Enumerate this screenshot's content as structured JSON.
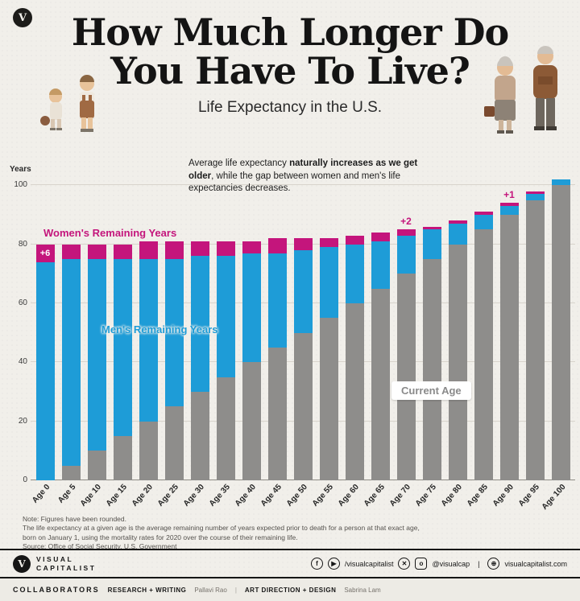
{
  "header": {
    "corner_mark": "V",
    "title_line1": "How Much Longer Do",
    "title_line2": "You Have To Live?",
    "subtitle": "Life Expectancy in the U.S."
  },
  "chart": {
    "axis_label": "Years",
    "annotation_pre": "Average life expectancy ",
    "annotation_bold": "naturally increases as we get older",
    "annotation_post": ", while the gap between women and men's life expectancies decreases."
  },
  "chart_data": {
    "type": "bar",
    "subtype": "stacked",
    "title": "How Much Longer Do You Have To Live? — Life Expectancy in the U.S.",
    "xlabel": "Current age",
    "ylabel": "Years",
    "ylim": [
      0,
      100
    ],
    "yticks": [
      0,
      20,
      40,
      60,
      80,
      100
    ],
    "grid": true,
    "categories": [
      "Age 0",
      "Age 5",
      "Age 10",
      "Age 15",
      "Age 20",
      "Age 25",
      "Age 30",
      "Age 35",
      "Age 40",
      "Age 45",
      "Age 50",
      "Age 55",
      "Age 60",
      "Age 65",
      "Age 70",
      "Age 75",
      "Age 80",
      "Age 85",
      "Age 90",
      "Age 95",
      "Age 100"
    ],
    "series": [
      {
        "name": "Current Age",
        "color": "#8e8d8b",
        "values": [
          0,
          5,
          10,
          15,
          20,
          25,
          30,
          35,
          40,
          45,
          50,
          55,
          60,
          65,
          70,
          75,
          80,
          85,
          90,
          95,
          100
        ]
      },
      {
        "name": "Men's Remaining Years",
        "color": "#1e9cd7",
        "values": [
          74,
          70,
          65,
          60,
          55,
          50,
          46,
          41,
          37,
          32,
          28,
          24,
          20,
          16,
          13,
          10,
          7,
          5,
          3,
          2,
          2
        ]
      },
      {
        "name": "Women's Remaining Years",
        "color": "#c4157c",
        "values": [
          6,
          5,
          5,
          5,
          6,
          6,
          5,
          5,
          4,
          5,
          4,
          3,
          3,
          3,
          2,
          1,
          1,
          1,
          1,
          1,
          0
        ]
      }
    ],
    "annotations": [
      {
        "category": "Age 0",
        "label": "+6",
        "placement": "inside"
      },
      {
        "category": "Age 70",
        "label": "+2",
        "placement": "above"
      },
      {
        "category": "Age 90",
        "label": "+1",
        "placement": "above"
      }
    ],
    "legend_position": "inside-plot"
  },
  "notes": {
    "line1": "Note: Figures have been rounded.",
    "line2": "The life expectancy at a given age is the average remaining number of years expected prior to death for a person at that exact age, born on January 1, using the mortality rates for 2020 over the course of their remaining life.",
    "source": "Source: Office of Social Security, U.S. Government"
  },
  "footer": {
    "logo_mark": "V",
    "logo_line1": "VISUAL",
    "logo_line2": "CAPITALIST",
    "icons": {
      "facebook": "f",
      "youtube": "▶",
      "x": "✕",
      "instagram": "o",
      "globe": "⊕"
    },
    "social_handle": "/visualcapitalist",
    "ig_handle": "@visualcap",
    "divider": "|",
    "website": "visualcapitalist.com"
  },
  "collaborators": {
    "label": "COLLABORATORS",
    "research_label": "RESEARCH + WRITING",
    "research_name": "Pallavi Rao",
    "separator": "|",
    "art_label": "ART DIRECTION + DESIGN",
    "art_name": "Sabrina Lam"
  },
  "colors": {
    "background": "#f1efea",
    "women": "#c4157c",
    "men": "#1e9cd7",
    "current_age": "#8e8d8b",
    "title": "#141414"
  }
}
